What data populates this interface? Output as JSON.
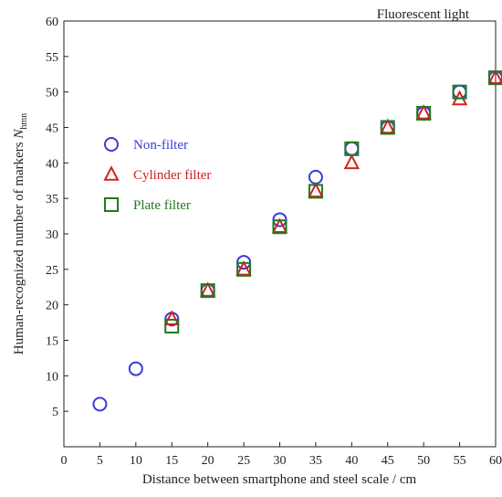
{
  "chart_data": {
    "type": "scatter",
    "title": "Fluorescent light",
    "xlabel": "Distance between smartphone and steel scale / cm",
    "ylabel": "Human-recognized number of markers ",
    "ylabel_symbol": "N",
    "ylabel_subscript": "hmn",
    "xlim": [
      0,
      60
    ],
    "ylim": [
      0,
      60
    ],
    "xticks": [
      0,
      5,
      10,
      15,
      20,
      25,
      30,
      35,
      40,
      45,
      50,
      55,
      60
    ],
    "yticks": [
      5,
      10,
      15,
      20,
      25,
      30,
      35,
      40,
      45,
      50,
      55,
      60
    ],
    "grid": false,
    "legend_position": "left",
    "series": [
      {
        "name": "Non-filter",
        "marker": "circle",
        "color": "#3a3ad6",
        "points": [
          [
            5,
            6
          ],
          [
            10,
            11
          ],
          [
            15,
            18
          ],
          [
            20,
            22
          ],
          [
            25,
            26
          ],
          [
            30,
            32
          ],
          [
            35,
            38
          ],
          [
            40,
            42
          ],
          [
            45,
            45
          ],
          [
            50,
            47
          ],
          [
            55,
            50
          ],
          [
            60,
            52
          ]
        ]
      },
      {
        "name": "Cylinder filter",
        "marker": "triangle",
        "color": "#d42020",
        "points": [
          [
            15,
            18
          ],
          [
            20,
            22
          ],
          [
            25,
            25
          ],
          [
            30,
            31
          ],
          [
            35,
            36
          ],
          [
            40,
            40
          ],
          [
            45,
            45
          ],
          [
            50,
            47
          ],
          [
            55,
            49
          ],
          [
            60,
            52
          ]
        ]
      },
      {
        "name": "Plate filter",
        "marker": "square",
        "color": "#1f7a1f",
        "points": [
          [
            15,
            17
          ],
          [
            20,
            22
          ],
          [
            25,
            25
          ],
          [
            30,
            31
          ],
          [
            35,
            36
          ],
          [
            40,
            42
          ],
          [
            45,
            45
          ],
          [
            50,
            47
          ],
          [
            55,
            50
          ],
          [
            60,
            52
          ]
        ]
      }
    ]
  }
}
